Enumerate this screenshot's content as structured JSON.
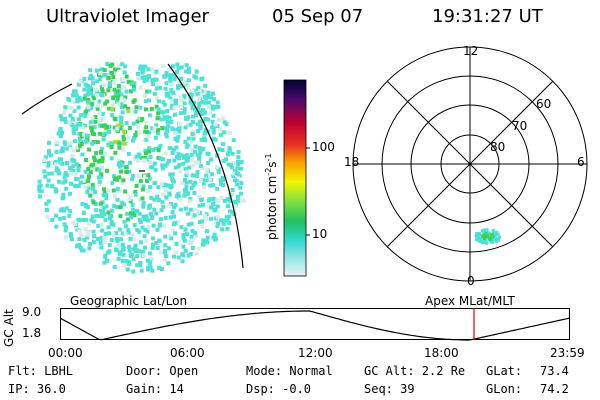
{
  "header": {
    "title": "Ultraviolet Imager",
    "date": "05 Sep 07",
    "time": "19:31:27 UT"
  },
  "colorbar": {
    "label": "photon cm",
    "label_sup1": "-2",
    "label_s": "s",
    "label_sup2": "-1",
    "tick_100": "100",
    "tick_10": "10"
  },
  "polar_plot": {
    "mlt_top": "12",
    "mlt_left": "18",
    "mlt_right": "6",
    "mlt_bottom": "0",
    "lat_60": "60",
    "lat_70": "70",
    "lat_80": "80"
  },
  "orbit": {
    "left_title": "Geographic Lat/Lon",
    "right_title": "Apex MLat/MLT",
    "ylabel": "GC Alt",
    "y_max": "9.0",
    "y_min": "1.8",
    "x_ticks": [
      "00:00",
      "06:00",
      "12:00",
      "18:00",
      "23:59"
    ],
    "marker_color": "#e00000"
  },
  "status": {
    "flt": "Flt: LBHL",
    "ip": "IP: 36.0",
    "door": "Door: Open",
    "gain": "Gain: 14",
    "mode": "Mode: Normal",
    "dsp": "Dsp:  -0.0",
    "gcalt": "GC Alt: 2.2 Re",
    "seq": "Seq: 39",
    "glat_label": "GLat:",
    "glat_value": "73.4",
    "glon_label": "GLon:",
    "glon_value": "74.2"
  },
  "colors": {
    "aurora_low": "#4fe0d6",
    "aurora_mid": "#3ccf5a",
    "aurora_high": "#9fe040"
  }
}
